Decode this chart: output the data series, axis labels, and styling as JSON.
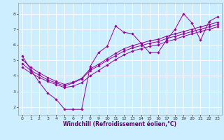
{
  "title": "",
  "xlabel": "Windchill (Refroidissement éolien,°C)",
  "ylabel": "",
  "background_color": "#cceeff",
  "line_color": "#990099",
  "grid_color": "#ffffff",
  "xlim": [
    -0.5,
    23.5
  ],
  "ylim": [
    1.5,
    8.7
  ],
  "xticks": [
    0,
    1,
    2,
    3,
    4,
    5,
    6,
    7,
    8,
    9,
    10,
    11,
    12,
    13,
    14,
    15,
    16,
    17,
    18,
    19,
    20,
    21,
    22,
    23
  ],
  "yticks": [
    2,
    3,
    4,
    5,
    6,
    7,
    8
  ],
  "line1_x": [
    0,
    1,
    2,
    3,
    4,
    5,
    6,
    7,
    8,
    9,
    10,
    11,
    12,
    13,
    14,
    15,
    16,
    17,
    18,
    19,
    20,
    21,
    22,
    23
  ],
  "line1_y": [
    5.3,
    4.4,
    3.6,
    2.9,
    2.5,
    1.85,
    1.85,
    1.85,
    4.6,
    5.5,
    5.9,
    7.2,
    6.8,
    6.7,
    6.1,
    5.5,
    5.5,
    6.3,
    7.0,
    8.0,
    7.4,
    6.3,
    7.5,
    7.8
  ],
  "line2_x": [
    0,
    1,
    2,
    3,
    4,
    5,
    6,
    7,
    8,
    9,
    10,
    11,
    12,
    13,
    14,
    15,
    16,
    17,
    18,
    19,
    20,
    21,
    22,
    23
  ],
  "line2_y": [
    4.8,
    4.35,
    4.05,
    3.75,
    3.55,
    3.35,
    3.55,
    3.8,
    4.35,
    4.65,
    5.0,
    5.3,
    5.6,
    5.8,
    5.95,
    6.1,
    6.2,
    6.4,
    6.55,
    6.7,
    6.85,
    7.0,
    7.15,
    7.3
  ],
  "line3_x": [
    0,
    1,
    2,
    3,
    4,
    5,
    6,
    7,
    8,
    9,
    10,
    11,
    12,
    13,
    14,
    15,
    16,
    17,
    18,
    19,
    20,
    21,
    22,
    23
  ],
  "line3_y": [
    4.55,
    4.2,
    3.9,
    3.65,
    3.45,
    3.25,
    3.35,
    3.55,
    4.0,
    4.35,
    4.7,
    5.05,
    5.35,
    5.6,
    5.75,
    5.9,
    6.0,
    6.2,
    6.35,
    6.55,
    6.7,
    6.85,
    7.0,
    7.15
  ],
  "line4_x": [
    0,
    1,
    2,
    3,
    4,
    5,
    6,
    7,
    8,
    9,
    10,
    11,
    12,
    13,
    14,
    15,
    16,
    17,
    18,
    19,
    20,
    21,
    22,
    23
  ],
  "line4_y": [
    5.05,
    4.55,
    4.2,
    3.9,
    3.65,
    3.45,
    3.6,
    3.85,
    4.45,
    4.75,
    5.1,
    5.45,
    5.75,
    5.95,
    6.1,
    6.25,
    6.35,
    6.55,
    6.7,
    6.85,
    7.0,
    7.15,
    7.3,
    7.45
  ],
  "marker": "D",
  "marker_size": 1.8,
  "line_width": 0.7,
  "tick_fontsize": 4.5,
  "xlabel_fontsize": 5.5,
  "xlabel_color": "#660066"
}
